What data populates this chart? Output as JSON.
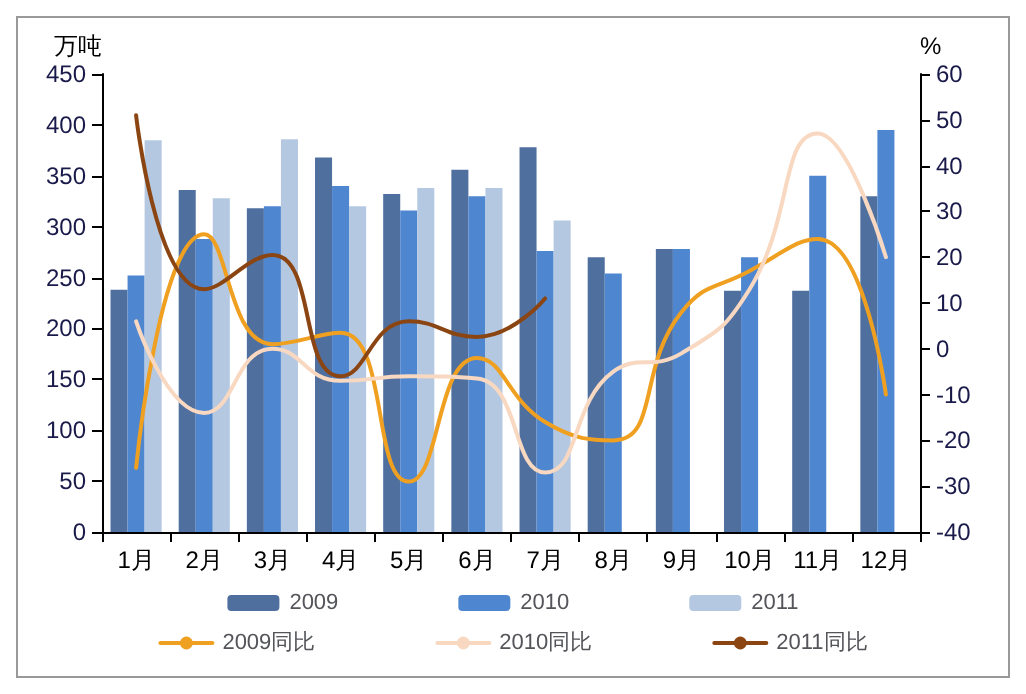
{
  "chart_data": {
    "type": "bar",
    "ylabel": "万吨",
    "y2label": "%",
    "categories": [
      "1月",
      "2月",
      "3月",
      "4月",
      "5月",
      "6月",
      "7月",
      "8月",
      "9月",
      "10月",
      "11月",
      "12月"
    ],
    "series": [
      {
        "name": "2009",
        "color": "#4f6f9f",
        "values": [
          238,
          336,
          318,
          368,
          332,
          356,
          378,
          270,
          278,
          237,
          237,
          330
        ]
      },
      {
        "name": "2010",
        "color": "#4f86d0",
        "values": [
          252,
          288,
          320,
          340,
          316,
          330,
          276,
          254,
          278,
          270,
          350,
          395
        ]
      },
      {
        "name": "2011",
        "color": "#b4c8e2",
        "values": [
          385,
          328,
          386,
          320,
          338,
          338,
          306,
          null,
          null,
          null,
          null,
          null
        ]
      },
      {
        "name": "2009同比",
        "type": "line",
        "axis": "y2",
        "color": "#f0a020",
        "values": [
          -26,
          25,
          1,
          3.5,
          -29,
          -2,
          -16,
          -20,
          8,
          17,
          24,
          -10
        ]
      },
      {
        "name": "2010同比",
        "type": "line",
        "axis": "y2",
        "color": "#f8d8c0",
        "values": [
          6,
          -14,
          0,
          -7,
          -6,
          -6.5,
          -27,
          -5,
          -1,
          13,
          47,
          20
        ]
      },
      {
        "name": "2011同比",
        "type": "line",
        "axis": "y2",
        "color": "#8b4513",
        "values": [
          51,
          13,
          20.5,
          -6,
          6,
          2.6,
          11,
          null,
          null,
          null,
          null,
          null
        ]
      }
    ],
    "ylim": [
      0,
      450
    ],
    "yticks": [
      0,
      50,
      100,
      150,
      200,
      250,
      300,
      350,
      400,
      450
    ],
    "y2lim": [
      -40,
      60
    ],
    "y2ticks": [
      -40,
      -30,
      -20,
      -10,
      0,
      10,
      20,
      30,
      40,
      50,
      60
    ],
    "grid": false,
    "legend": "bottom",
    "marker": "none",
    "line_style": "solid"
  }
}
